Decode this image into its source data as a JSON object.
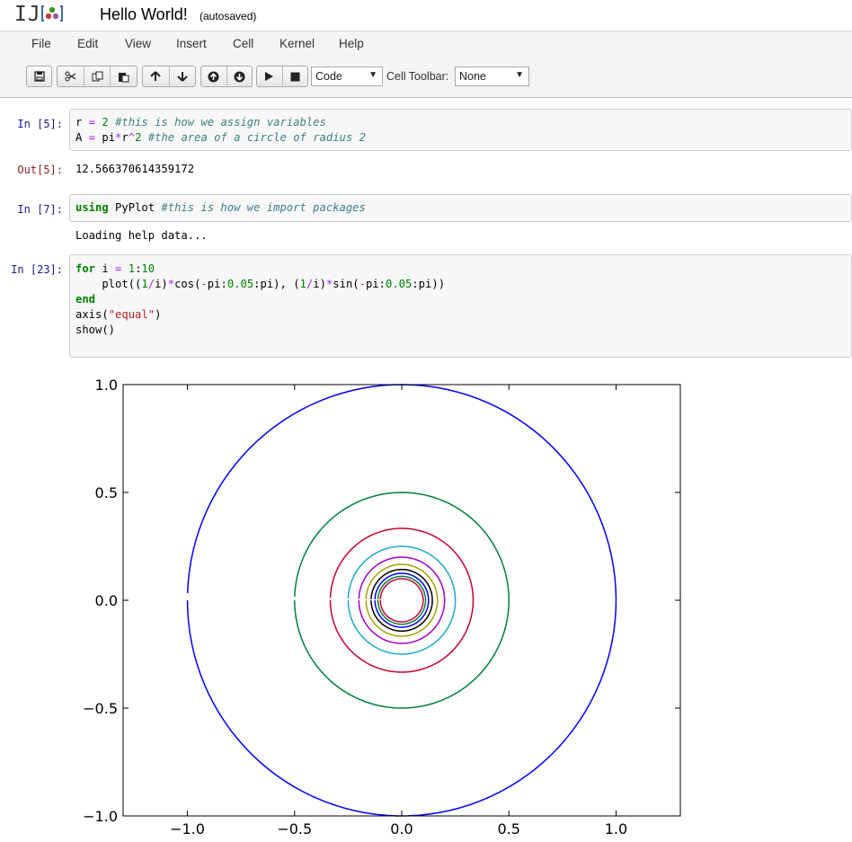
{
  "header": {
    "logo_text": "IJ",
    "notebook_name": "Hello World!",
    "autosave_status": "(autosaved)"
  },
  "menu": {
    "items": [
      "File",
      "Edit",
      "View",
      "Insert",
      "Cell",
      "Kernel",
      "Help"
    ]
  },
  "toolbar": {
    "cell_type": "Code",
    "cell_toolbar_label": "Cell Toolbar:",
    "cell_toolbar_value": "None"
  },
  "cells": [
    {
      "prompt": "In [5]:",
      "lines": [
        "r = 2 #this is how we assign variables",
        "A = pi*r^2 #the area of a circle of radius 2"
      ]
    },
    {
      "prompt": "Out[5]:",
      "output": "12.566370614359172"
    },
    {
      "prompt": "In [7]:",
      "lines": [
        "using PyPlot #this is how we import packages"
      ],
      "output": "Loading help data..."
    },
    {
      "prompt": "In [23]:",
      "lines": [
        "for i = 1:10",
        "    plot((1/i)*cos(-pi:0.05:pi), (1/i)*sin(-pi:0.05:pi))",
        "end",
        "axis(\"equal\")",
        "show()"
      ]
    }
  ],
  "chart_data": {
    "type": "line",
    "title": "",
    "xlabel": "",
    "ylabel": "",
    "xlim": [
      -1.3,
      1.3
    ],
    "ylim": [
      -1.0,
      1.0
    ],
    "x_ticks": [
      "−1.0",
      "−0.5",
      "0.0",
      "0.5",
      "1.0"
    ],
    "x_tick_values": [
      -1.0,
      -0.5,
      0.0,
      0.5,
      1.0
    ],
    "y_ticks": [
      "1.0",
      "0.5",
      "0.0",
      "−0.5",
      "−1.0"
    ],
    "y_tick_values": [
      1.0,
      0.5,
      0.0,
      -0.5,
      -1.0
    ],
    "series": [
      {
        "name": "i=1",
        "radius": 1.0,
        "color": "#0000ff"
      },
      {
        "name": "i=2",
        "radius": 0.5,
        "color": "#007f3f"
      },
      {
        "name": "i=3",
        "radius": 0.3333,
        "color": "#cc0033"
      },
      {
        "name": "i=4",
        "radius": 0.25,
        "color": "#17a9cc"
      },
      {
        "name": "i=5",
        "radius": 0.2,
        "color": "#a300cc"
      },
      {
        "name": "i=6",
        "radius": 0.1667,
        "color": "#a3a300"
      },
      {
        "name": "i=7",
        "radius": 0.1429,
        "color": "#000000"
      },
      {
        "name": "i=8",
        "radius": 0.125,
        "color": "#0000ff"
      },
      {
        "name": "i=9",
        "radius": 0.1111,
        "color": "#007f3f"
      },
      {
        "name": "i=10",
        "radius": 0.1,
        "color": "#cc0033"
      }
    ]
  }
}
